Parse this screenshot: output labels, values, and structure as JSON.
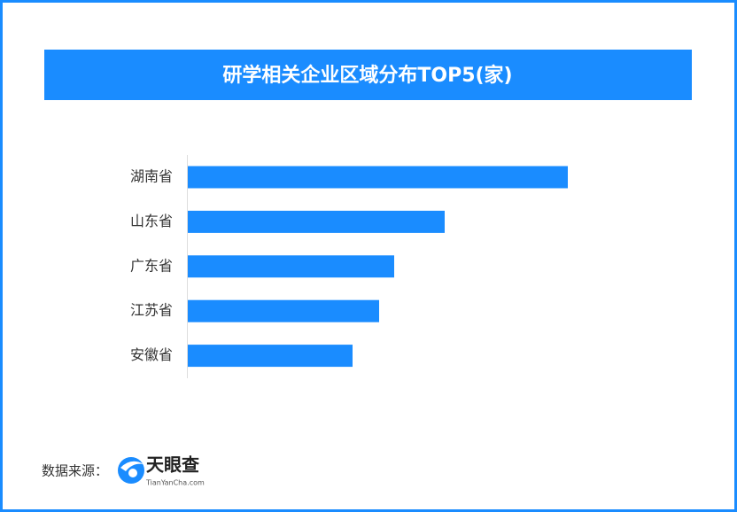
{
  "chart_data": {
    "type": "bar",
    "orientation": "horizontal",
    "title": "研学相关企业区域分布TOP5(家)",
    "categories": [
      "湖南省",
      "山东省",
      "广东省",
      "江苏省",
      "安徽省"
    ],
    "values": [
      429,
      290,
      233,
      216,
      186
    ],
    "color": "#1a8cff"
  },
  "footer": {
    "source": "数据来源：",
    "logo_name": "天眼查",
    "logo_url": "TianYanCha.com"
  }
}
